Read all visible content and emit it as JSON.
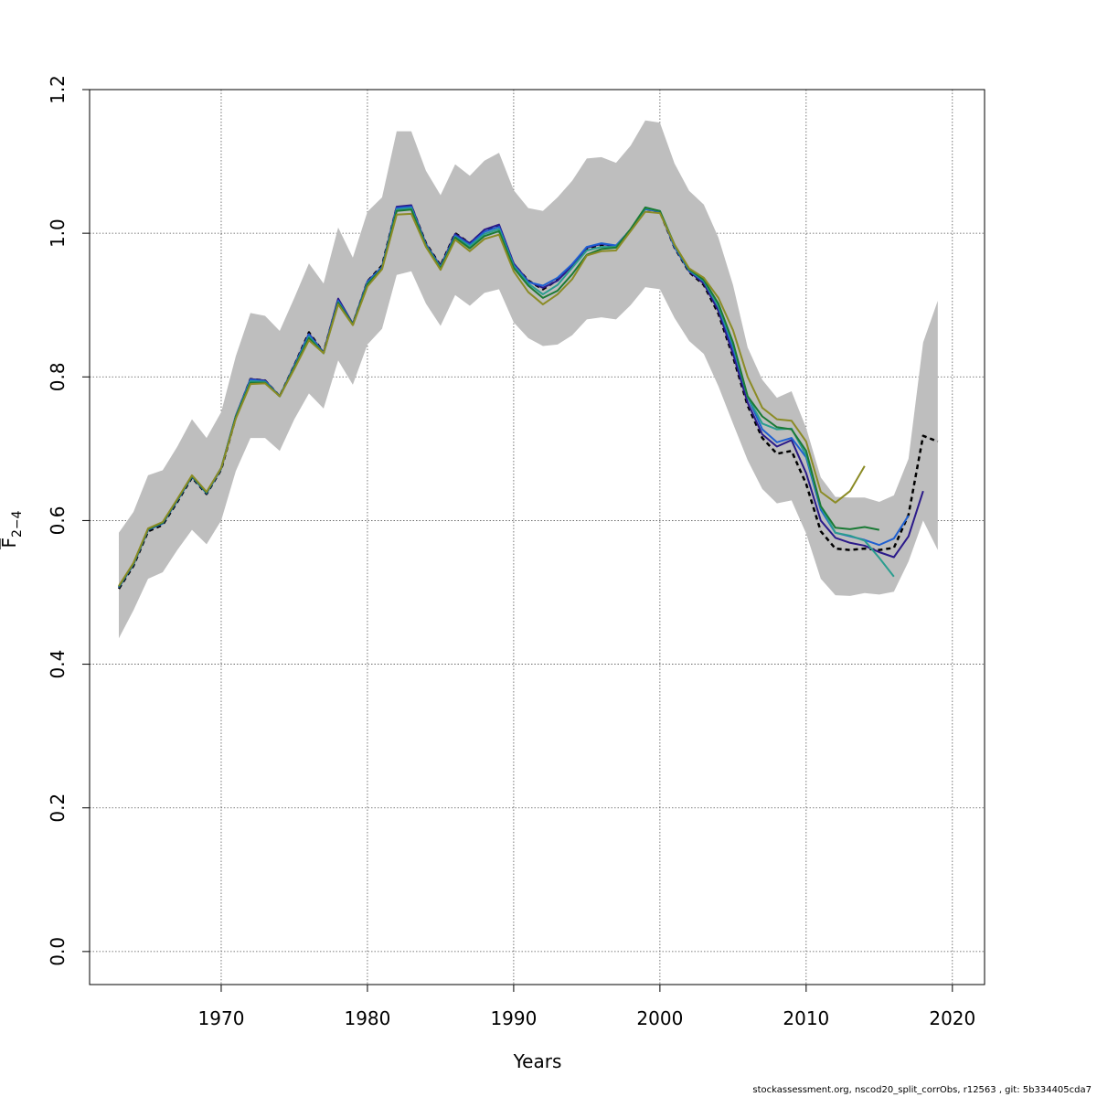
{
  "chart_data": {
    "type": "line",
    "title": "",
    "xlabel": "Years",
    "ylabel": "F̄2−4",
    "xlim": [
      1961,
      2022.2
    ],
    "ylim": [
      -0.046,
      1.2
    ],
    "x_ticks": [
      1970,
      1980,
      1990,
      2000,
      2010,
      2020
    ],
    "y_ticks": [
      0.0,
      0.2,
      0.4,
      0.6,
      0.8,
      1.0,
      1.2
    ],
    "x_tick_labels": [
      "1970",
      "1980",
      "1990",
      "2000",
      "2010",
      "2020"
    ],
    "y_tick_labels": [
      "0.0",
      "0.2",
      "0.4",
      "0.6",
      "0.8",
      "1.0",
      "1.2"
    ],
    "grid": true,
    "confidence_band": {
      "color": "#bebebe",
      "x": [
        1963,
        1964,
        1965,
        1966,
        1967,
        1968,
        1969,
        1970,
        1971,
        1972,
        1973,
        1974,
        1975,
        1976,
        1977,
        1978,
        1979,
        1980,
        1981,
        1982,
        1983,
        1984,
        1985,
        1986,
        1987,
        1988,
        1989,
        1990,
        1991,
        1992,
        1993,
        1994,
        1995,
        1996,
        1997,
        1998,
        1999,
        2000,
        2001,
        2002,
        2003,
        2004,
        2005,
        2006,
        2007,
        2008,
        2009,
        2010,
        2011,
        2012,
        2013,
        2014,
        2015,
        2016,
        2017,
        2018,
        2019
      ],
      "upper": [
        0.583,
        0.612,
        0.663,
        0.67,
        0.703,
        0.741,
        0.715,
        0.751,
        0.829,
        0.889,
        0.885,
        0.864,
        0.91,
        0.958,
        0.93,
        1.008,
        0.966,
        1.03,
        1.05,
        1.142,
        1.142,
        1.087,
        1.053,
        1.096,
        1.08,
        1.101,
        1.112,
        1.06,
        1.035,
        1.031,
        1.05,
        1.073,
        1.104,
        1.106,
        1.098,
        1.122,
        1.157,
        1.154,
        1.097,
        1.059,
        1.04,
        0.994,
        0.928,
        0.841,
        0.796,
        0.771,
        0.78,
        0.729,
        0.66,
        0.633,
        0.632,
        0.632,
        0.626,
        0.635,
        0.686,
        0.848,
        0.906
      ],
      "lower": [
        0.436,
        0.475,
        0.519,
        0.528,
        0.559,
        0.587,
        0.567,
        0.6,
        0.669,
        0.715,
        0.715,
        0.697,
        0.741,
        0.777,
        0.756,
        0.823,
        0.789,
        0.845,
        0.867,
        0.942,
        0.947,
        0.902,
        0.871,
        0.914,
        0.899,
        0.917,
        0.922,
        0.876,
        0.854,
        0.843,
        0.845,
        0.858,
        0.88,
        0.883,
        0.88,
        0.9,
        0.925,
        0.922,
        0.882,
        0.85,
        0.832,
        0.787,
        0.735,
        0.684,
        0.644,
        0.624,
        0.628,
        0.582,
        0.519,
        0.496,
        0.495,
        0.499,
        0.497,
        0.501,
        0.543,
        0.6,
        0.559
      ]
    },
    "series": [
      {
        "color": "#b8b8b8",
        "dash": "solid",
        "x": [
          1963,
          1964,
          1965,
          1966,
          1967,
          1968,
          1969,
          1970,
          1971,
          1972,
          1973,
          1974,
          1975,
          1976,
          1977,
          1978,
          1979,
          1980,
          1981,
          1982,
          1983,
          1984,
          1985,
          1986,
          1987,
          1988,
          1989,
          1990,
          1991,
          1992,
          1993,
          1994,
          1995,
          1996,
          1997,
          1998,
          1999,
          2000,
          2001,
          2002,
          2003,
          2004,
          2005,
          2006,
          2007,
          2008,
          2009,
          2010,
          2011,
          2012,
          2013,
          2014,
          2015,
          2016,
          2017,
          2018,
          2019
        ],
        "values": [
          0.505,
          0.537,
          0.585,
          0.594,
          0.626,
          0.66,
          0.637,
          0.671,
          0.744,
          0.797,
          0.795,
          0.773,
          0.816,
          0.862,
          0.834,
          0.907,
          0.873,
          0.933,
          0.955,
          1.036,
          1.038,
          0.986,
          0.955,
          1.0,
          0.986,
          1.004,
          1.01,
          0.957,
          0.934,
          0.922,
          0.935,
          0.955,
          0.979,
          0.984,
          0.981,
          1.005,
          1.034,
          1.03,
          0.98,
          0.946,
          0.928,
          0.888,
          0.828,
          0.76,
          0.715,
          0.693,
          0.697,
          0.651,
          0.585,
          0.561,
          0.559,
          0.561,
          0.559,
          0.562,
          0.608,
          0.718,
          0.71
        ]
      },
      {
        "color": "#000000",
        "dash": "dashed",
        "width": 2.5,
        "x": [
          1963,
          1964,
          1965,
          1966,
          1967,
          1968,
          1969,
          1970,
          1971,
          1972,
          1973,
          1974,
          1975,
          1976,
          1977,
          1978,
          1979,
          1980,
          1981,
          1982,
          1983,
          1984,
          1985,
          1986,
          1987,
          1988,
          1989,
          1990,
          1991,
          1992,
          1993,
          1994,
          1995,
          1996,
          1997,
          1998,
          1999,
          2000,
          2001,
          2002,
          2003,
          2004,
          2005,
          2006,
          2007,
          2008,
          2009,
          2010,
          2011,
          2012,
          2013,
          2014,
          2015,
          2016,
          2017,
          2018,
          2019
        ],
        "values": [
          0.505,
          0.537,
          0.585,
          0.594,
          0.626,
          0.66,
          0.637,
          0.671,
          0.744,
          0.797,
          0.795,
          0.773,
          0.816,
          0.862,
          0.834,
          0.907,
          0.873,
          0.933,
          0.955,
          1.036,
          1.038,
          0.986,
          0.955,
          1.0,
          0.986,
          1.004,
          1.01,
          0.957,
          0.934,
          0.922,
          0.935,
          0.955,
          0.979,
          0.984,
          0.981,
          1.005,
          1.034,
          1.03,
          0.98,
          0.946,
          0.928,
          0.888,
          0.828,
          0.76,
          0.715,
          0.693,
          0.697,
          0.651,
          0.585,
          0.561,
          0.559,
          0.561,
          0.559,
          0.562,
          0.608,
          0.718,
          0.71
        ]
      },
      {
        "color": "#2b1a8a",
        "dash": "solid",
        "x": [
          1963,
          1964,
          1965,
          1966,
          1967,
          1968,
          1969,
          1970,
          1971,
          1972,
          1973,
          1974,
          1975,
          1976,
          1977,
          1978,
          1979,
          1980,
          1981,
          1982,
          1983,
          1984,
          1985,
          1986,
          1987,
          1988,
          1989,
          1990,
          1991,
          1992,
          1993,
          1994,
          1995,
          1996,
          1997,
          1998,
          1999,
          2000,
          2001,
          2002,
          2003,
          2004,
          2005,
          2006,
          2007,
          2008,
          2009,
          2010,
          2011,
          2012,
          2013,
          2014,
          2015,
          2016,
          2017,
          2018
        ],
        "values": [
          0.507,
          0.539,
          0.587,
          0.596,
          0.628,
          0.662,
          0.639,
          0.673,
          0.746,
          0.797,
          0.795,
          0.773,
          0.816,
          0.86,
          0.834,
          0.909,
          0.874,
          0.933,
          0.953,
          1.037,
          1.039,
          0.985,
          0.954,
          0.999,
          0.986,
          1.005,
          1.012,
          0.958,
          0.933,
          0.924,
          0.934,
          0.955,
          0.98,
          0.985,
          0.982,
          1.005,
          1.034,
          1.03,
          0.981,
          0.947,
          0.93,
          0.892,
          0.832,
          0.764,
          0.72,
          0.703,
          0.712,
          0.666,
          0.6,
          0.576,
          0.569,
          0.565,
          0.556,
          0.549,
          0.578,
          0.641
        ]
      },
      {
        "color": "#1e5fd1",
        "dash": "solid",
        "x": [
          1963,
          1964,
          1965,
          1966,
          1967,
          1968,
          1969,
          1970,
          1971,
          1972,
          1973,
          1974,
          1975,
          1976,
          1977,
          1978,
          1979,
          1980,
          1981,
          1982,
          1983,
          1984,
          1985,
          1986,
          1987,
          1988,
          1989,
          1990,
          1991,
          1992,
          1993,
          1994,
          1995,
          1996,
          1997,
          1998,
          1999,
          2000,
          2001,
          2002,
          2003,
          2004,
          2005,
          2006,
          2007,
          2008,
          2009,
          2010,
          2011,
          2012,
          2013,
          2014,
          2015,
          2016,
          2017
        ],
        "values": [
          0.507,
          0.539,
          0.587,
          0.596,
          0.628,
          0.661,
          0.638,
          0.672,
          0.745,
          0.796,
          0.794,
          0.773,
          0.815,
          0.859,
          0.833,
          0.906,
          0.873,
          0.932,
          0.953,
          1.035,
          1.037,
          0.984,
          0.953,
          0.997,
          0.984,
          1.002,
          1.009,
          0.956,
          0.932,
          0.927,
          0.938,
          0.957,
          0.981,
          0.986,
          0.983,
          1.005,
          1.034,
          1.03,
          0.981,
          0.948,
          0.933,
          0.897,
          0.84,
          0.772,
          0.727,
          0.709,
          0.715,
          0.688,
          0.615,
          0.583,
          0.578,
          0.573,
          0.566,
          0.575,
          0.607
        ]
      },
      {
        "color": "#2a9d8f",
        "dash": "solid",
        "x": [
          1963,
          1964,
          1965,
          1966,
          1967,
          1968,
          1969,
          1970,
          1971,
          1972,
          1973,
          1974,
          1975,
          1976,
          1977,
          1978,
          1979,
          1980,
          1981,
          1982,
          1983,
          1984,
          1985,
          1986,
          1987,
          1988,
          1989,
          1990,
          1991,
          1992,
          1993,
          1994,
          1995,
          1996,
          1997,
          1998,
          1999,
          2000,
          2001,
          2002,
          2003,
          2004,
          2005,
          2006,
          2007,
          2008,
          2009,
          2010,
          2011,
          2012,
          2013,
          2014,
          2015,
          2016
        ],
        "values": [
          0.508,
          0.54,
          0.588,
          0.597,
          0.629,
          0.662,
          0.639,
          0.673,
          0.745,
          0.794,
          0.793,
          0.773,
          0.814,
          0.856,
          0.833,
          0.904,
          0.873,
          0.93,
          0.951,
          1.033,
          1.035,
          0.983,
          0.952,
          0.995,
          0.982,
          0.999,
          1.006,
          0.954,
          0.93,
          0.915,
          0.928,
          0.952,
          0.976,
          0.981,
          0.981,
          1.005,
          1.035,
          1.031,
          0.983,
          0.949,
          0.934,
          0.898,
          0.845,
          0.772,
          0.735,
          0.727,
          0.728,
          0.691,
          0.619,
          0.583,
          0.579,
          0.572,
          0.548,
          0.522
        ]
      },
      {
        "color": "#1a7a35",
        "dash": "solid",
        "x": [
          1963,
          1964,
          1965,
          1966,
          1967,
          1968,
          1969,
          1970,
          1971,
          1972,
          1973,
          1974,
          1975,
          1976,
          1977,
          1978,
          1979,
          1980,
          1981,
          1982,
          1983,
          1984,
          1985,
          1986,
          1987,
          1988,
          1989,
          1990,
          1991,
          1992,
          1993,
          1994,
          1995,
          1996,
          1997,
          1998,
          1999,
          2000,
          2001,
          2002,
          2003,
          2004,
          2005,
          2006,
          2007,
          2008,
          2009,
          2010,
          2011,
          2012,
          2013,
          2014,
          2015
        ],
        "values": [
          0.508,
          0.54,
          0.588,
          0.597,
          0.629,
          0.662,
          0.639,
          0.673,
          0.744,
          0.792,
          0.792,
          0.773,
          0.813,
          0.854,
          0.833,
          0.903,
          0.873,
          0.929,
          0.951,
          1.031,
          1.033,
          0.982,
          0.951,
          0.994,
          0.979,
          0.996,
          1.003,
          0.952,
          0.927,
          0.91,
          0.92,
          0.943,
          0.97,
          0.978,
          0.98,
          1.006,
          1.036,
          1.031,
          0.984,
          0.95,
          0.935,
          0.902,
          0.848,
          0.773,
          0.745,
          0.73,
          0.727,
          0.697,
          0.62,
          0.59,
          0.588,
          0.591,
          0.587
        ]
      },
      {
        "color": "#8b8b25",
        "dash": "solid",
        "x": [
          1963,
          1964,
          1965,
          1966,
          1967,
          1968,
          1969,
          1970,
          1971,
          1972,
          1973,
          1974,
          1975,
          1976,
          1977,
          1978,
          1979,
          1980,
          1981,
          1982,
          1983,
          1984,
          1985,
          1986,
          1987,
          1988,
          1989,
          1990,
          1991,
          1992,
          1993,
          1994,
          1995,
          1996,
          1997,
          1998,
          1999,
          2000,
          2001,
          2002,
          2003,
          2004,
          2005,
          2006,
          2007,
          2008,
          2009,
          2010,
          2011,
          2012,
          2013,
          2014
        ],
        "values": [
          0.509,
          0.541,
          0.589,
          0.598,
          0.63,
          0.663,
          0.64,
          0.673,
          0.742,
          0.79,
          0.791,
          0.773,
          0.811,
          0.851,
          0.833,
          0.901,
          0.872,
          0.926,
          0.95,
          1.026,
          1.027,
          0.981,
          0.949,
          0.991,
          0.975,
          0.992,
          0.998,
          0.947,
          0.918,
          0.901,
          0.915,
          0.936,
          0.969,
          0.975,
          0.976,
          1.003,
          1.03,
          1.028,
          0.984,
          0.951,
          0.938,
          0.91,
          0.865,
          0.8,
          0.757,
          0.741,
          0.739,
          0.71,
          0.64,
          0.625,
          0.641,
          0.676
        ]
      }
    ]
  },
  "footer": {
    "text": "stockassessment.org, nscod20_split_corrObs, r12563 , git: 5b334405cda7"
  }
}
